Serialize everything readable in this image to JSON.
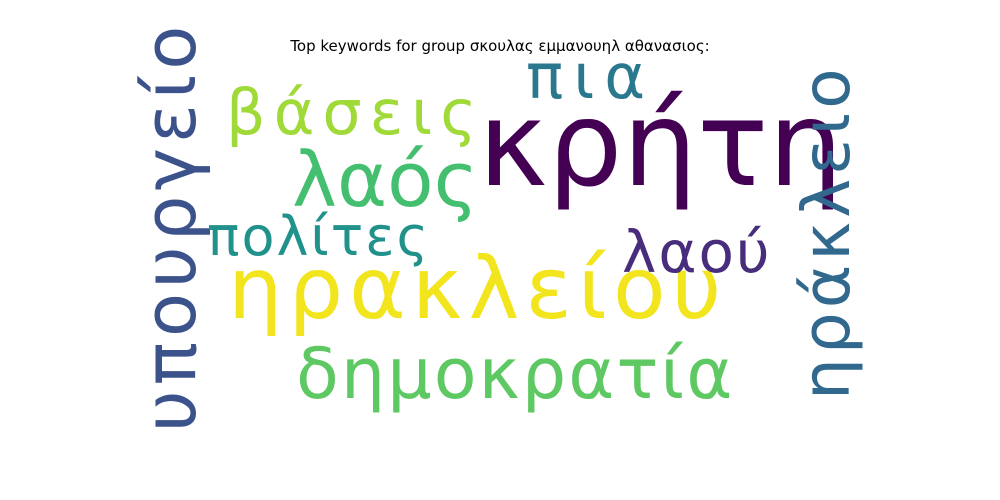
{
  "chart_data": {
    "type": "wordcloud",
    "title": "Top keywords for group σκουλας εμμανουηλ αθανασιος:",
    "words": [
      {
        "text": "κρήτη",
        "color": "#440154"
      },
      {
        "text": "ηρακλείου",
        "color": "#f2e51d"
      },
      {
        "text": "δημοκρατία",
        "color": "#5ec962"
      },
      {
        "text": "υπουργείο",
        "color": "#3b528b"
      },
      {
        "text": "ηράκλειο",
        "color": "#31688e"
      },
      {
        "text": "λαός",
        "color": "#44bf70"
      },
      {
        "text": "βάσεις",
        "color": "#a0da39"
      },
      {
        "text": "πια",
        "color": "#2a788e"
      },
      {
        "text": "πολίτες",
        "color": "#21918c"
      },
      {
        "text": "λαού",
        "color": "#472d7b"
      }
    ]
  }
}
